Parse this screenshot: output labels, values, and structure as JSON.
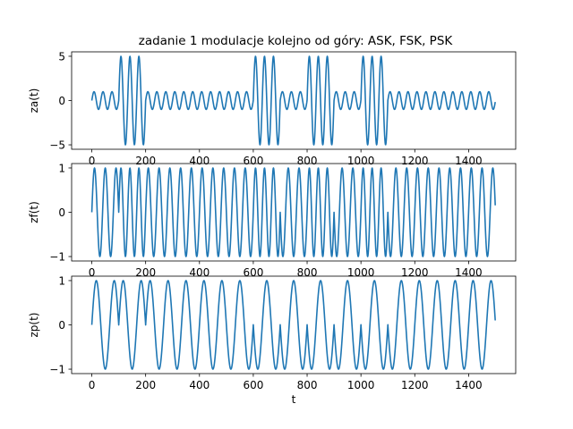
{
  "title": "zadanie 1 modulacje kolejno od góry: ASK, FSK, PSK",
  "colors": {
    "line": "#1f77b4"
  },
  "chart_data": [
    {
      "type": "line",
      "name": "ASK",
      "title": "zadanie 1 modulacje kolejno od góry: ASK, FSK, PSK",
      "xlabel": "",
      "ylabel": "za(t)",
      "xlim": [
        -75,
        1575
      ],
      "ylim": [
        -5.5,
        5.5
      ],
      "xticks": [
        0,
        200,
        400,
        600,
        800,
        1000,
        1200,
        1400
      ],
      "yticks": [
        -5,
        0,
        5
      ],
      "x": {
        "start": 0,
        "end": 1500,
        "step": 1
      },
      "modulation": "ASK",
      "bits": [
        0,
        1,
        0,
        0,
        0,
        0,
        1,
        0,
        1,
        0,
        1,
        0,
        0,
        0,
        0
      ],
      "bit_duration": 100,
      "amplitude_for_bit": {
        "0": 1,
        "1": 5
      },
      "carrier_period": 33.33,
      "grid": false,
      "legend": false
    },
    {
      "type": "line",
      "name": "FSK",
      "xlabel": "",
      "ylabel": "zf(t)",
      "xlim": [
        -75,
        1575
      ],
      "ylim": [
        -1.1,
        1.1
      ],
      "xticks": [
        0,
        200,
        400,
        600,
        800,
        1000,
        1200,
        1400
      ],
      "yticks": [
        -1,
        0,
        1
      ],
      "x": {
        "start": 0,
        "end": 1500,
        "step": 1
      },
      "modulation": "FSK",
      "bits": [
        0,
        1,
        0,
        0,
        0,
        0,
        1,
        0,
        1,
        0,
        1,
        0,
        0,
        0,
        0
      ],
      "bit_duration": 100,
      "period_for_bit": {
        "0": 40,
        "1": 33.33
      },
      "amplitude": 1,
      "grid": false,
      "legend": false
    },
    {
      "type": "line",
      "name": "PSK",
      "xlabel": "t",
      "ylabel": "zp(t)",
      "xlim": [
        -75,
        1575
      ],
      "ylim": [
        -1.1,
        1.1
      ],
      "xticks": [
        0,
        200,
        400,
        600,
        800,
        1000,
        1200,
        1400
      ],
      "yticks": [
        -1,
        0,
        1
      ],
      "x": {
        "start": 0,
        "end": 1500,
        "step": 1
      },
      "modulation": "PSK",
      "bits": [
        0,
        1,
        0,
        0,
        0,
        0,
        1,
        0,
        1,
        0,
        1,
        0,
        0,
        0,
        0
      ],
      "bit_duration": 100,
      "phase_for_bit": {
        "0": 0,
        "1": 3.14159
      },
      "carrier_period": 66.67,
      "amplitude": 1,
      "grid": false,
      "legend": false
    }
  ]
}
